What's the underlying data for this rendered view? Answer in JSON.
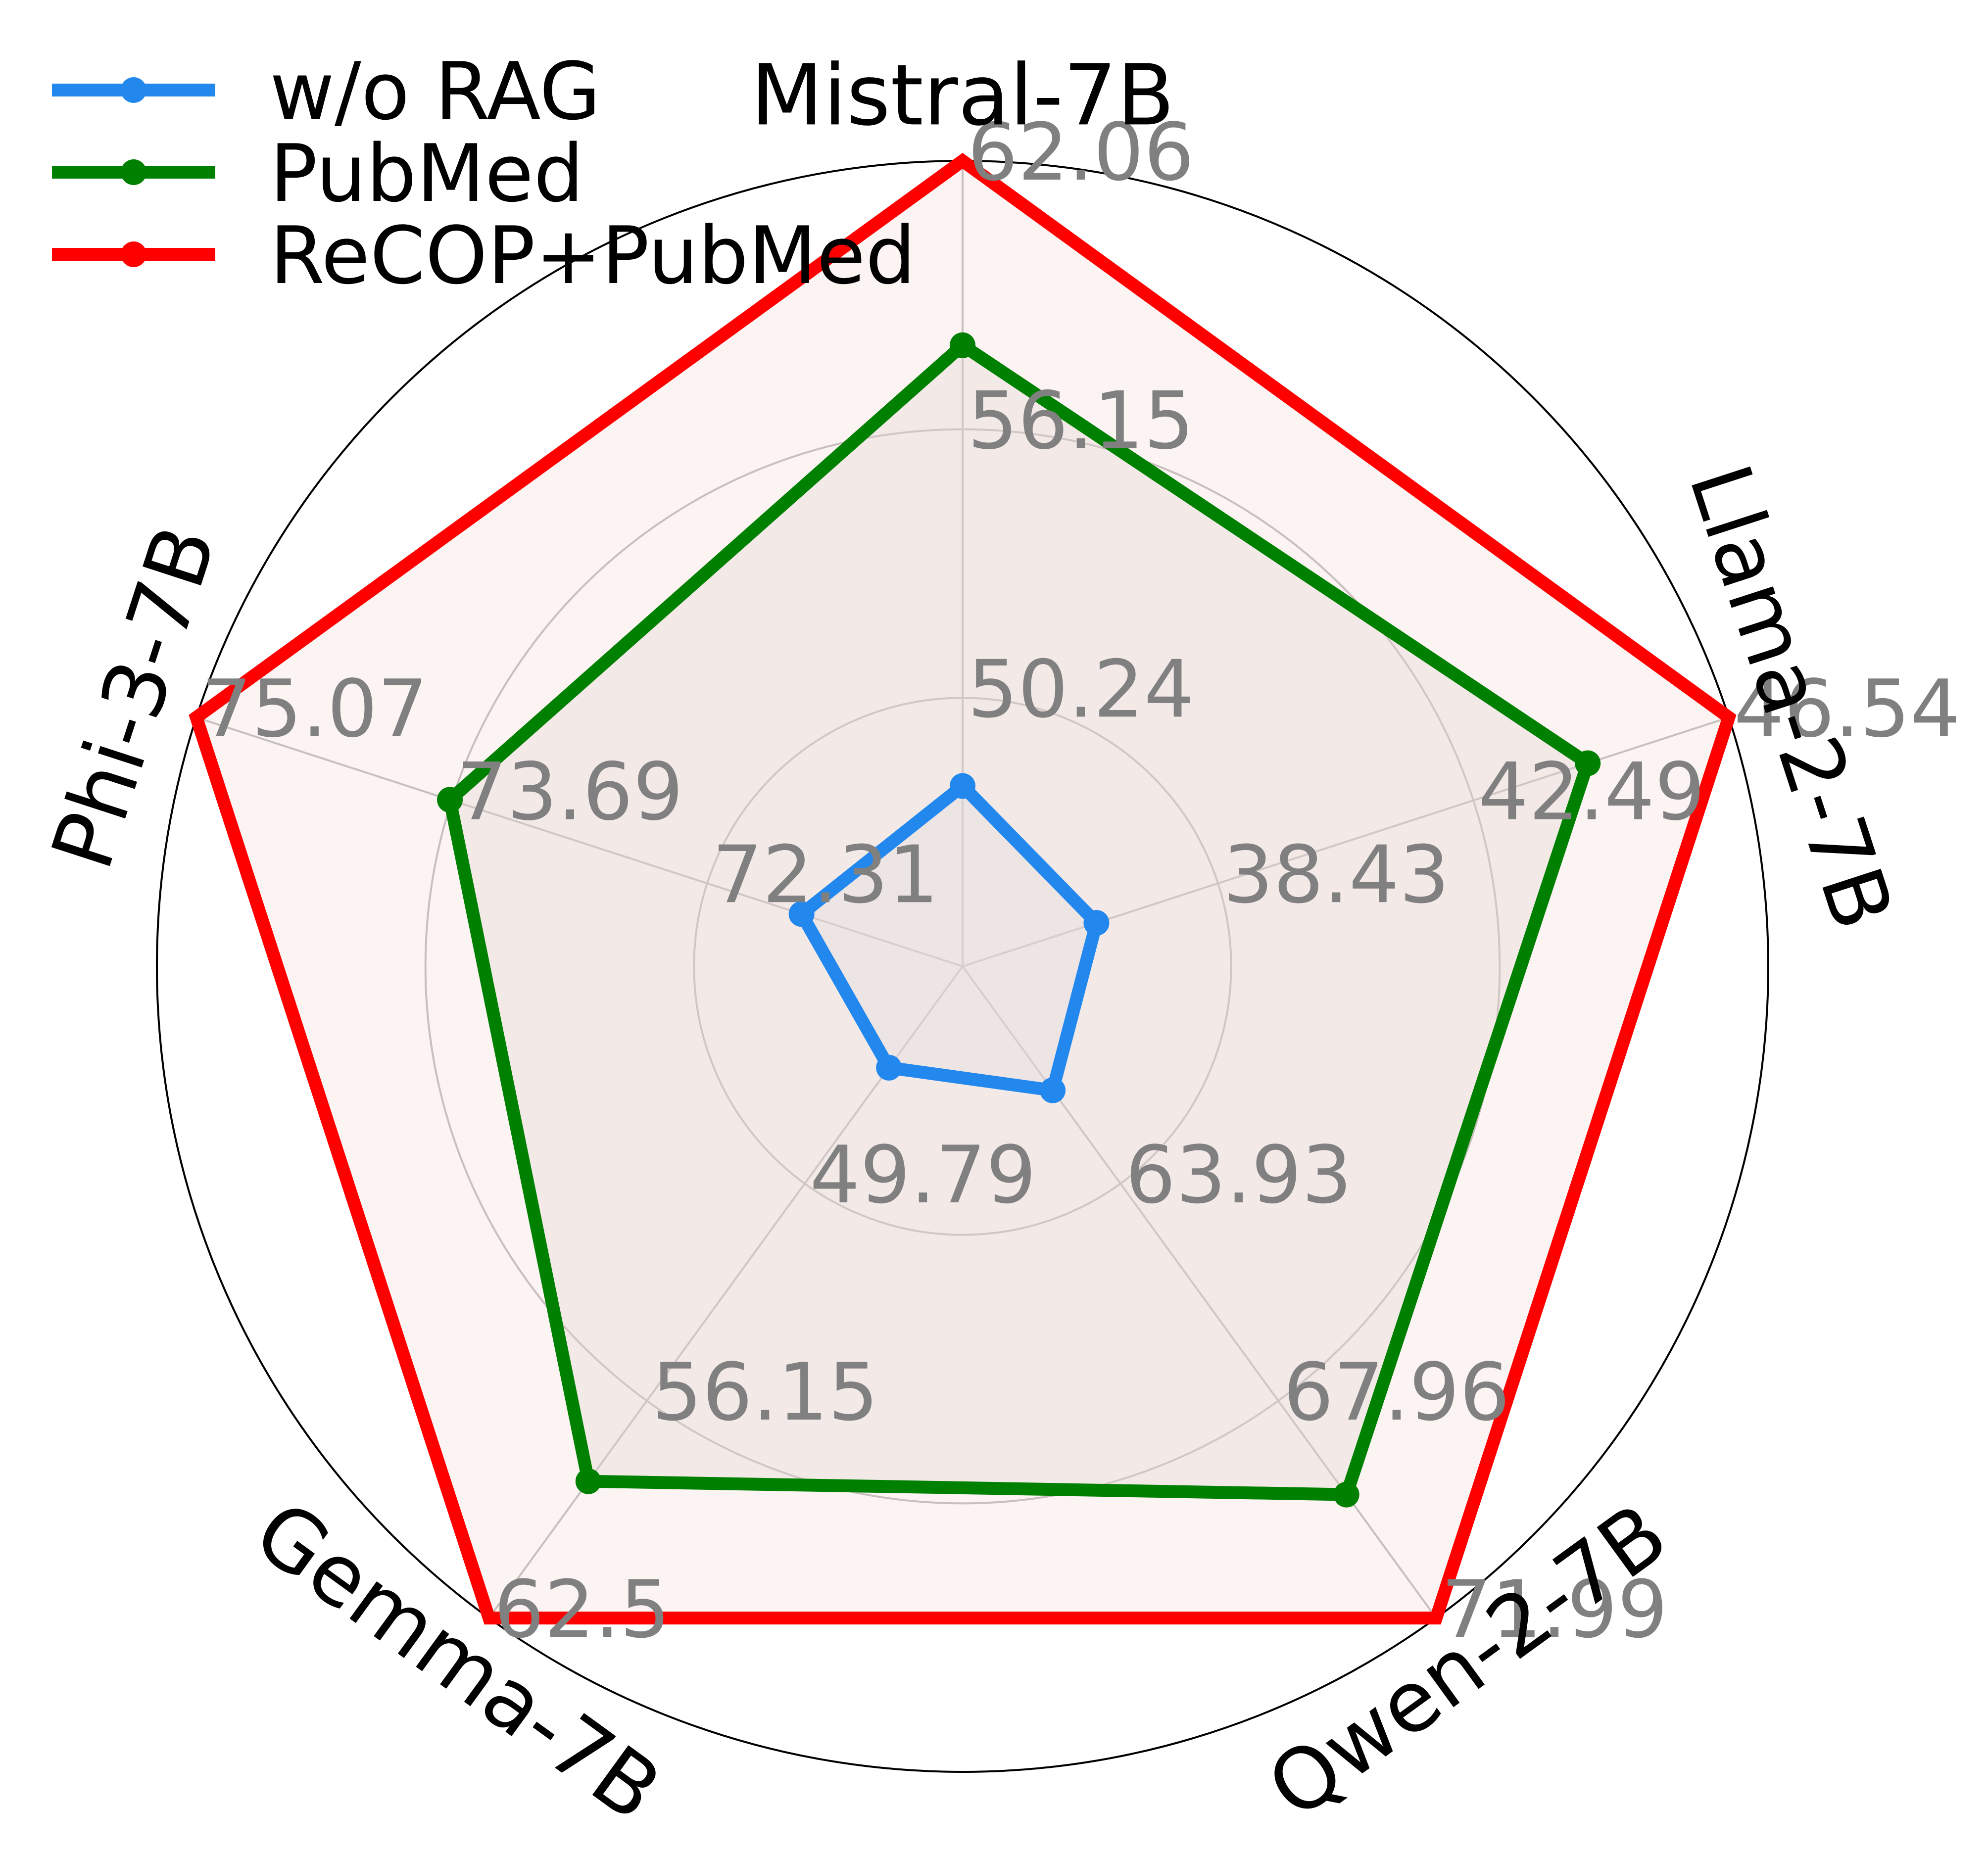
{
  "chart_data": {
    "type": "radar",
    "axes": [
      {
        "name": "Mistral-7B",
        "ticks": [
          "50.24",
          "56.15",
          "62.06"
        ]
      },
      {
        "name": "Llama-2-7B",
        "ticks": [
          "38.43",
          "42.49",
          "46.54"
        ]
      },
      {
        "name": "Qwen-2-7B",
        "ticks": [
          "63.93",
          "67.96",
          "71.99"
        ]
      },
      {
        "name": "Gemma-7B",
        "ticks": [
          "49.79",
          "56.15",
          "62.5"
        ]
      },
      {
        "name": "Phi-3-7B",
        "ticks": [
          "72.31",
          "73.69",
          "75.07"
        ]
      }
    ],
    "series": [
      {
        "name": "w/o RAG",
        "color": "#2288ee",
        "values": [
          48.3,
          36.5,
          62.2,
          46.4,
          71.8
        ]
      },
      {
        "name": "PubMed",
        "color": "#008000",
        "values": [
          58.0,
          44.3,
          69.7,
          58.5,
          73.7
        ]
      },
      {
        "name": "ReCOP+PubMed",
        "color": "#ff0000",
        "values": [
          62.06,
          46.54,
          71.99,
          62.5,
          75.07
        ]
      }
    ],
    "fills": [
      "#d8d8e0",
      "#d8d8d0",
      "#f5dcdc"
    ],
    "legend_position": "top-left",
    "grid": true
  }
}
